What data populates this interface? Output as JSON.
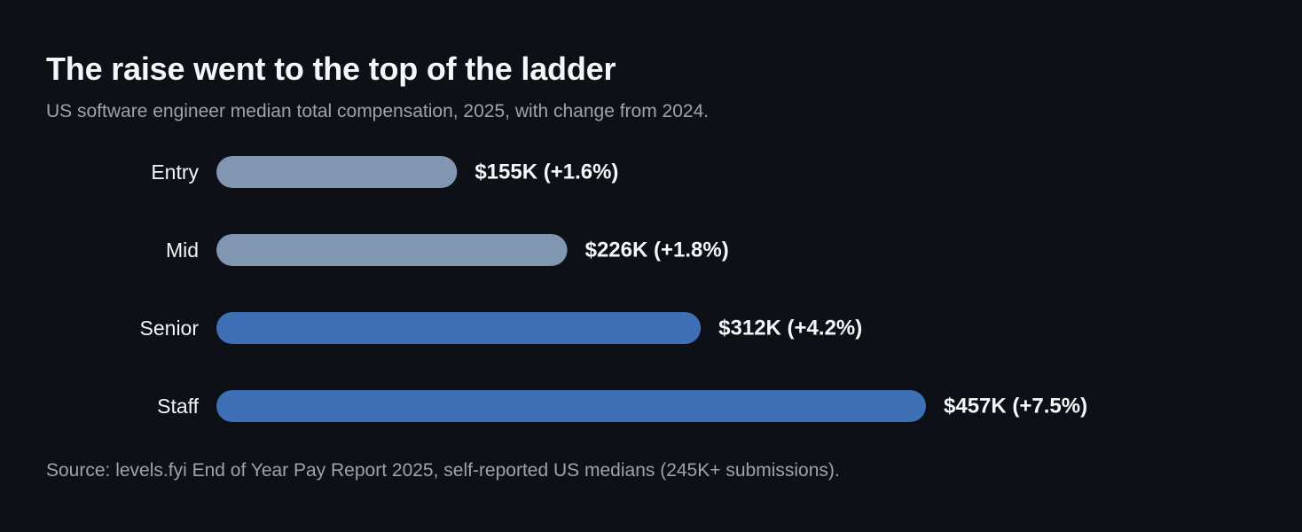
{
  "title": "The raise went to the top of the ladder",
  "subtitle": "US software engineer median total compensation, 2025, with change from 2024.",
  "source": "Source: levels.fyi End of Year Pay Report 2025, self-reported US medians (245K+ submissions).",
  "colors": {
    "background": "#0e1017",
    "muted_bar": "#8196b0",
    "highlight_bar": "#3f6fb5",
    "text": "#f3f4f6",
    "subtext": "#9ca3af"
  },
  "chart_data": {
    "type": "bar",
    "orientation": "horizontal",
    "categories": [
      "Entry",
      "Mid",
      "Senior",
      "Staff"
    ],
    "values": [
      155,
      226,
      312,
      457
    ],
    "value_unit": "$K",
    "change_pct": [
      1.6,
      1.8,
      4.2,
      7.5
    ],
    "value_labels": [
      "$155K (+1.6%)",
      "$226K (+1.8%)",
      "$312K (+4.2%)",
      "$457K (+7.5%)"
    ],
    "highlighted": [
      false,
      false,
      true,
      true
    ],
    "xlim": [
      0,
      457
    ],
    "grid": false,
    "legend": "none"
  }
}
